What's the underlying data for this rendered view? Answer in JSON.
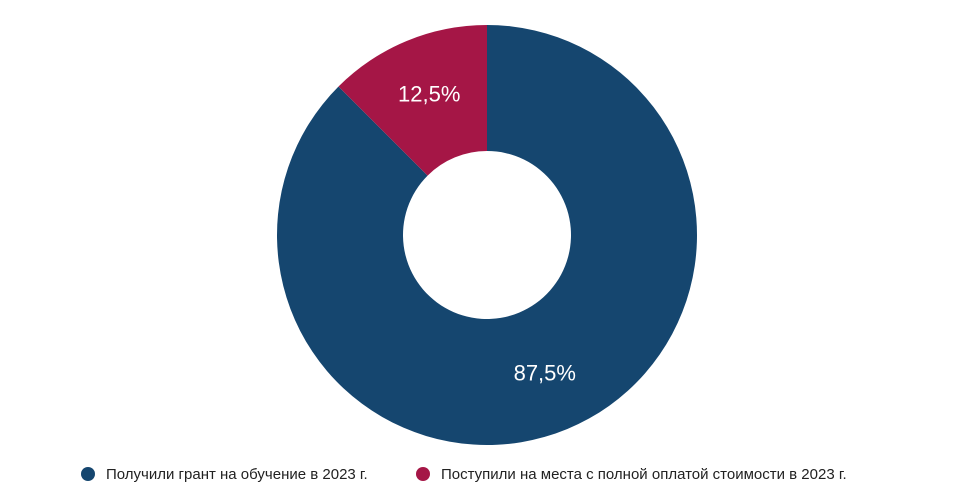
{
  "chart_data": {
    "type": "donut",
    "categories": [
      "Получили грант на обучение в 2023 г.",
      "Поступили на места с полной оплатой стоимости в 2023 г."
    ],
    "values": [
      87.5,
      12.5
    ],
    "value_labels": [
      "87,5%",
      "12,5%"
    ],
    "colors": [
      "#15466f",
      "#a51646"
    ]
  }
}
